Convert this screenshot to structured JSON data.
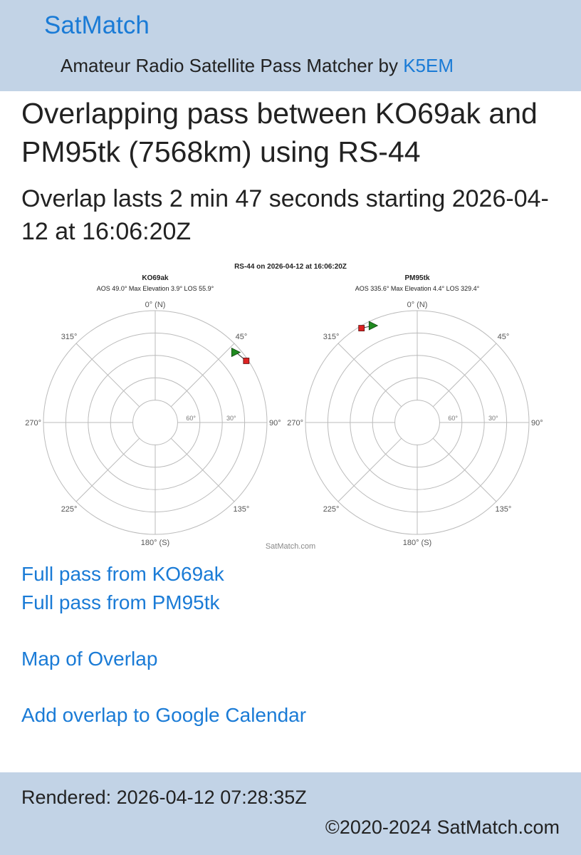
{
  "header": {
    "brand": "SatMatch",
    "tagline_prefix": "Amateur Radio Satellite Pass Matcher by ",
    "tagline_link": "K5EM"
  },
  "title": "Overlapping pass between KO69ak and PM95tk (7568km) using RS-44",
  "subtitle": "Overlap lasts 2 min 47 seconds starting 2026-04-12 at 16:06:20Z",
  "chart_data": {
    "type": "scatter",
    "title": "RS-44 on 2026-04-12 at 16:06:20Z",
    "credit": "SatMatch.com",
    "polar_axis": {
      "direction_labels": [
        "0° (N)",
        "45°",
        "90°",
        "135°",
        "180° (S)",
        "225°",
        "270°",
        "315°"
      ],
      "elevation_labels": [
        "60°",
        "30°"
      ],
      "rings": 5,
      "grid": true
    },
    "panels": [
      {
        "name": "KO69ak",
        "info": "AOS 49.0° Max Elevation 3.9° LOS 55.9°",
        "aos": {
          "azimuth": 49.0,
          "elevation": 3.9
        },
        "los": {
          "azimuth": 55.9,
          "elevation": 1.5
        }
      },
      {
        "name": "PM95tk",
        "info": "AOS 335.6° Max Elevation 4.4° LOS 329.4°",
        "aos": {
          "azimuth": 335.6,
          "elevation": 4.4
        },
        "los": {
          "azimuth": 329.4,
          "elevation": 1.8
        }
      }
    ],
    "colors": {
      "aos": "#1f8a1f",
      "los": "#dd2222",
      "grid": "#bbbbbb"
    }
  },
  "links": {
    "full_pass_a": "Full pass from KO69ak",
    "full_pass_b": "Full pass from PM95tk",
    "map": "Map of Overlap",
    "calendar": "Add overlap to Google Calendar"
  },
  "footer": {
    "rendered": "Rendered: 2026-04-12 07:28:35Z",
    "copyright": "©2020-2024 SatMatch.com"
  }
}
